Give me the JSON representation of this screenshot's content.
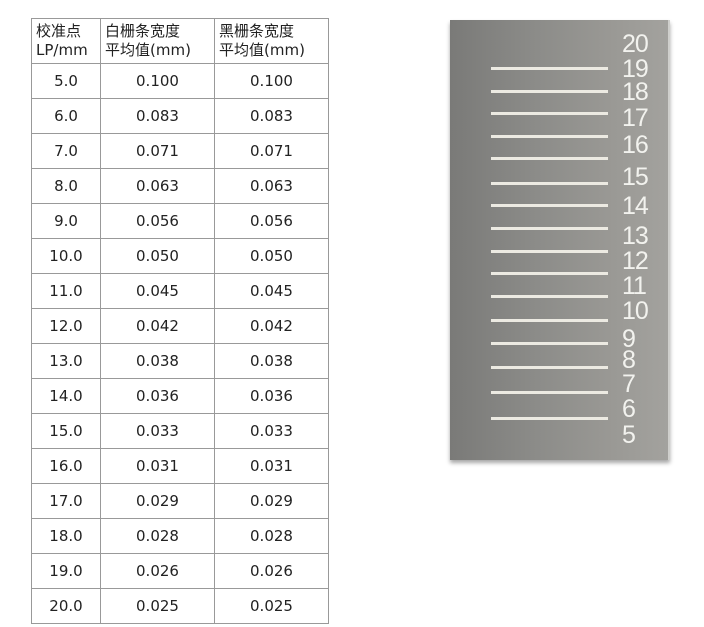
{
  "table": {
    "headers": [
      {
        "line1": "校准点",
        "line2": "LP/mm"
      },
      {
        "line1": "白栅条宽度",
        "line2": "平均值(mm)"
      },
      {
        "line1": "黑栅条宽度",
        "line2": "平均值(mm)"
      }
    ],
    "rows": [
      [
        "5.0",
        "0.100",
        "0.100"
      ],
      [
        "6.0",
        "0.083",
        "0.083"
      ],
      [
        "7.0",
        "0.071",
        "0.071"
      ],
      [
        "8.0",
        "0.063",
        "0.063"
      ],
      [
        "9.0",
        "0.056",
        "0.056"
      ],
      [
        "10.0",
        "0.050",
        "0.050"
      ],
      [
        "11.0",
        "0.045",
        "0.045"
      ],
      [
        "12.0",
        "0.042",
        "0.042"
      ],
      [
        "13.0",
        "0.038",
        "0.038"
      ],
      [
        "14.0",
        "0.036",
        "0.036"
      ],
      [
        "15.0",
        "0.033",
        "0.033"
      ],
      [
        "16.0",
        "0.031",
        "0.031"
      ],
      [
        "17.0",
        "0.029",
        "0.029"
      ],
      [
        "18.0",
        "0.028",
        "0.028"
      ],
      [
        "19.0",
        "0.026",
        "0.026"
      ],
      [
        "20.0",
        "0.025",
        "0.025"
      ]
    ]
  },
  "plate": {
    "labels": [
      "20",
      "19",
      "18",
      "17",
      "16",
      "15",
      "14",
      "13",
      "12",
      "11",
      "10",
      "9",
      "8",
      "7",
      "6",
      "5"
    ],
    "bar_color": "#eceae2",
    "plate_color": "#8c8c89"
  }
}
